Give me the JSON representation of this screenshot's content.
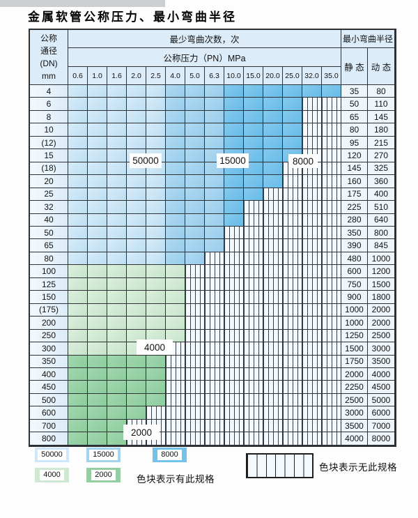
{
  "title": "金属软管公称压力、最小弯曲半径",
  "header": {
    "corner1": "公称",
    "corner2": "通径",
    "corner3": "(DN)",
    "corner4": "mm",
    "bend_cycles": "最少弯曲次数，次",
    "pressure": "公称压力（PN）MPa",
    "radius": "最小弯曲半径",
    "static": "静 态",
    "dynamic": "动 态"
  },
  "region_labels": {
    "b50000": "50000",
    "b15000": "15000",
    "b8000": "8000",
    "g4000": "4000",
    "g2000": "2000"
  },
  "legend": {
    "items": [
      {
        "label": "50000",
        "color": "#cfe7f8"
      },
      {
        "label": "15000",
        "color": "#a3d4ef"
      },
      {
        "label": "8000",
        "color": "#72c2ea"
      },
      {
        "label": "4000",
        "color": "#cfe8d2"
      },
      {
        "label": "2000",
        "color": "#93cfa2"
      }
    ],
    "present_note": "色块表示有此规格",
    "absent_note": "色块表示无此规格"
  },
  "chart_data": {
    "type": "table",
    "title": "金属软管公称压力、最小弯曲半径",
    "pressure_columns": [
      "0.6",
      "1.0",
      "1.6",
      "2.0",
      "2.5",
      "4.0",
      "5.0",
      "6.3",
      "10.0",
      "15.0",
      "20.0",
      "25.0",
      "32.0",
      "35.0"
    ],
    "radius_columns": [
      "静态",
      "动态"
    ],
    "cycle_bands": [
      {
        "cycles": 50000,
        "pressure_range": [
          "0.6",
          "2.5"
        ],
        "dn_range": [
          "4",
          "80"
        ]
      },
      {
        "cycles": 15000,
        "pressure_range": [
          "4.0",
          "6.3"
        ],
        "dn_range": [
          "4",
          "80"
        ]
      },
      {
        "cycles": 8000,
        "pressure_range": [
          "10.0",
          "35.0"
        ],
        "dn_range": [
          "4",
          "80"
        ]
      },
      {
        "cycles": 4000,
        "pressure_range": [
          "0.6",
          "4.0"
        ],
        "dn_range": [
          "100",
          "300"
        ]
      },
      {
        "cycles": 2000,
        "pressure_range": [
          "0.6",
          "2.5"
        ],
        "dn_range": [
          "350",
          "800"
        ]
      }
    ],
    "rows": [
      {
        "dn": "4",
        "band": "blue",
        "last": 13,
        "max_pn": "35.0",
        "static": "35",
        "dynamic": "80"
      },
      {
        "dn": "6",
        "band": "blue",
        "last": 11,
        "max_pn": "25.0",
        "static": "50",
        "dynamic": "110"
      },
      {
        "dn": "8",
        "band": "blue",
        "last": 11,
        "max_pn": "25.0",
        "static": "65",
        "dynamic": "145"
      },
      {
        "dn": "10",
        "band": "blue",
        "last": 11,
        "max_pn": "25.0",
        "static": "80",
        "dynamic": "180"
      },
      {
        "dn": "(12)",
        "band": "blue",
        "last": 11,
        "max_pn": "25.0",
        "static": "95",
        "dynamic": "215"
      },
      {
        "dn": "15",
        "band": "blue",
        "last": 11,
        "max_pn": "25.0",
        "static": "120",
        "dynamic": "270"
      },
      {
        "dn": "(18)",
        "band": "blue",
        "last": 10,
        "max_pn": "20.0",
        "static": "145",
        "dynamic": "325"
      },
      {
        "dn": "20",
        "band": "blue",
        "last": 10,
        "max_pn": "20.0",
        "static": "160",
        "dynamic": "360"
      },
      {
        "dn": "25",
        "band": "blue",
        "last": 9,
        "max_pn": "15.0",
        "static": "175",
        "dynamic": "400"
      },
      {
        "dn": "32",
        "band": "blue",
        "last": 8,
        "max_pn": "10.0",
        "static": "225",
        "dynamic": "510"
      },
      {
        "dn": "40",
        "band": "blue",
        "last": 8,
        "max_pn": "10.0",
        "static": "280",
        "dynamic": "640"
      },
      {
        "dn": "50",
        "band": "blue",
        "last": 7,
        "max_pn": "6.3",
        "static": "350",
        "dynamic": "800"
      },
      {
        "dn": "65",
        "band": "blue",
        "last": 7,
        "max_pn": "6.3",
        "static": "390",
        "dynamic": "845"
      },
      {
        "dn": "80",
        "band": "blue",
        "last": 6,
        "max_pn": "5.0",
        "static": "480",
        "dynamic": "1000"
      },
      {
        "dn": "100",
        "band": "4000",
        "last": 5,
        "max_pn": "4.0",
        "static": "600",
        "dynamic": "1200"
      },
      {
        "dn": "125",
        "band": "4000",
        "last": 5,
        "max_pn": "4.0",
        "static": "750",
        "dynamic": "1500"
      },
      {
        "dn": "150",
        "band": "4000",
        "last": 5,
        "max_pn": "4.0",
        "static": "900",
        "dynamic": "1800"
      },
      {
        "dn": "(175)",
        "band": "4000",
        "last": 5,
        "max_pn": "4.0",
        "static": "1000",
        "dynamic": "2000"
      },
      {
        "dn": "200",
        "band": "4000",
        "last": 5,
        "max_pn": "4.0",
        "static": "1000",
        "dynamic": "2000"
      },
      {
        "dn": "250",
        "band": "4000",
        "last": 5,
        "max_pn": "4.0",
        "static": "1250",
        "dynamic": "2500"
      },
      {
        "dn": "300",
        "band": "4000",
        "last": 4,
        "max_pn": "2.5",
        "static": "1500",
        "dynamic": "3000"
      },
      {
        "dn": "350",
        "band": "2000",
        "last": 4,
        "max_pn": "2.5",
        "static": "1750",
        "dynamic": "3500"
      },
      {
        "dn": "400",
        "band": "2000",
        "last": 4,
        "max_pn": "2.5",
        "static": "2000",
        "dynamic": "4000"
      },
      {
        "dn": "450",
        "band": "2000",
        "last": 4,
        "max_pn": "2.5",
        "static": "2250",
        "dynamic": "4500"
      },
      {
        "dn": "500",
        "band": "2000",
        "last": 4,
        "max_pn": "2.5",
        "static": "2500",
        "dynamic": "5000"
      },
      {
        "dn": "600",
        "band": "2000",
        "last": 3,
        "max_pn": "2.0",
        "static": "3000",
        "dynamic": "6000"
      },
      {
        "dn": "700",
        "band": "2000",
        "last": 2,
        "max_pn": "1.6",
        "static": "3500",
        "dynamic": "7000"
      },
      {
        "dn": "800",
        "band": "2000",
        "last": 2,
        "max_pn": "1.6",
        "static": "4000",
        "dynamic": "8000"
      }
    ]
  }
}
